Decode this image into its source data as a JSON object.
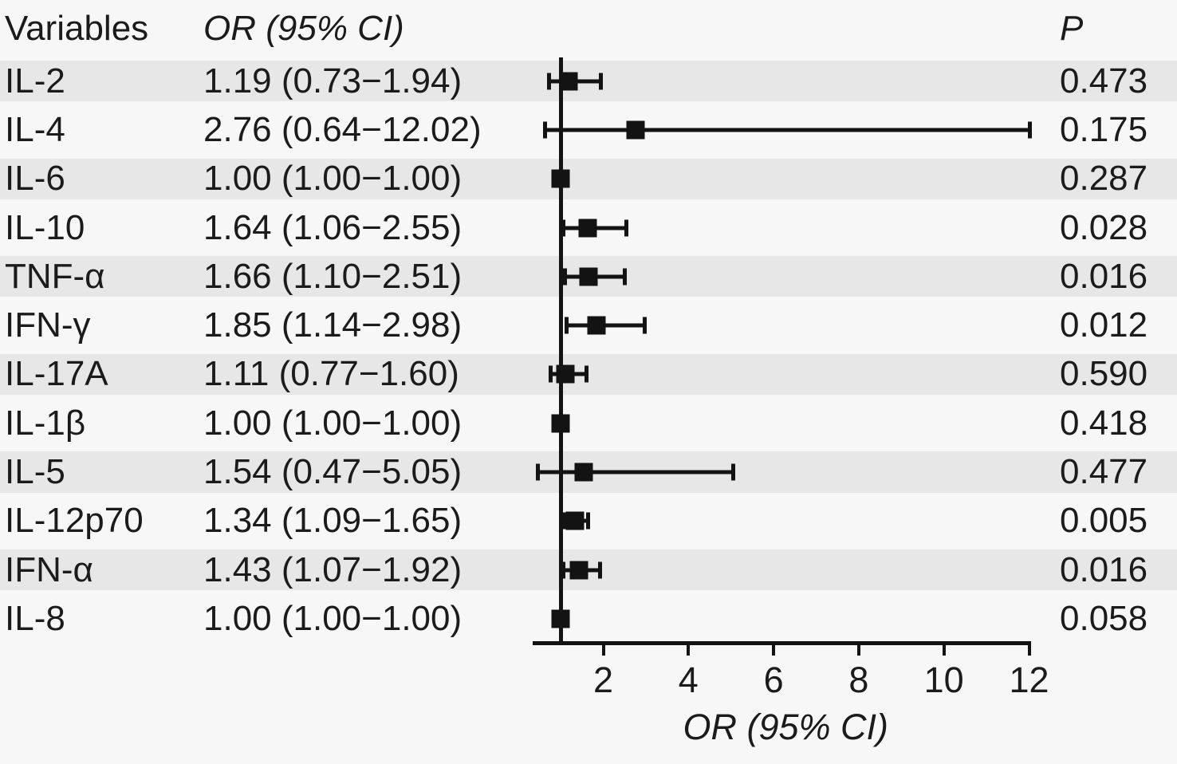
{
  "table": {
    "headers": {
      "variables": "Variables",
      "or_ci": "OR (95% CI)",
      "p": "P"
    }
  },
  "chart_data": {
    "type": "scatter",
    "subtype": "forest-plot",
    "xlabel": "OR (95% CI)",
    "x_ticks": [
      2,
      4,
      6,
      8,
      10,
      12
    ],
    "xlim": [
      0.35,
      12.4
    ],
    "reference_line_x": 1.0,
    "marker": "square",
    "marker_color": "#131313",
    "stripe_color": "#e7e7e7",
    "background_color": "#f7f7f7",
    "grid": false,
    "rows": [
      {
        "label": "IL-2",
        "or": 1.19,
        "ci_low": 0.73,
        "ci_high": 1.94,
        "or_ci": "1.19 (0.73−1.94)",
        "p": "0.473"
      },
      {
        "label": "IL-4",
        "or": 2.76,
        "ci_low": 0.64,
        "ci_high": 12.02,
        "or_ci": "2.76 (0.64−12.02)",
        "p": "0.175"
      },
      {
        "label": "IL-6",
        "or": 1.0,
        "ci_low": 1.0,
        "ci_high": 1.0,
        "or_ci": "1.00 (1.00−1.00)",
        "p": "0.287"
      },
      {
        "label": "IL-10",
        "or": 1.64,
        "ci_low": 1.06,
        "ci_high": 2.55,
        "or_ci": "1.64 (1.06−2.55)",
        "p": "0.028"
      },
      {
        "label": "TNF-α",
        "or": 1.66,
        "ci_low": 1.1,
        "ci_high": 2.51,
        "or_ci": "1.66 (1.10−2.51)",
        "p": "0.016"
      },
      {
        "label": "IFN-γ",
        "or": 1.85,
        "ci_low": 1.14,
        "ci_high": 2.98,
        "or_ci": "1.85 (1.14−2.98)",
        "p": "0.012"
      },
      {
        "label": "IL-17A",
        "or": 1.11,
        "ci_low": 0.77,
        "ci_high": 1.6,
        "or_ci": "1.11 (0.77−1.60)",
        "p": "0.590"
      },
      {
        "label": "IL-1β",
        "or": 1.0,
        "ci_low": 1.0,
        "ci_high": 1.0,
        "or_ci": "1.00 (1.00−1.00)",
        "p": "0.418"
      },
      {
        "label": "IL-5",
        "or": 1.54,
        "ci_low": 0.47,
        "ci_high": 5.05,
        "or_ci": "1.54 (0.47−5.05)",
        "p": "0.477"
      },
      {
        "label": "IL-12p70",
        "or": 1.34,
        "ci_low": 1.09,
        "ci_high": 1.65,
        "or_ci": "1.34 (1.09−1.65)",
        "p": "0.005"
      },
      {
        "label": "IFN-α",
        "or": 1.43,
        "ci_low": 1.07,
        "ci_high": 1.92,
        "or_ci": "1.43 (1.07−1.92)",
        "p": "0.016"
      },
      {
        "label": "IL-8",
        "or": 1.0,
        "ci_low": 1.0,
        "ci_high": 1.0,
        "or_ci": "1.00 (1.00−1.00)",
        "p": "0.058"
      }
    ]
  }
}
